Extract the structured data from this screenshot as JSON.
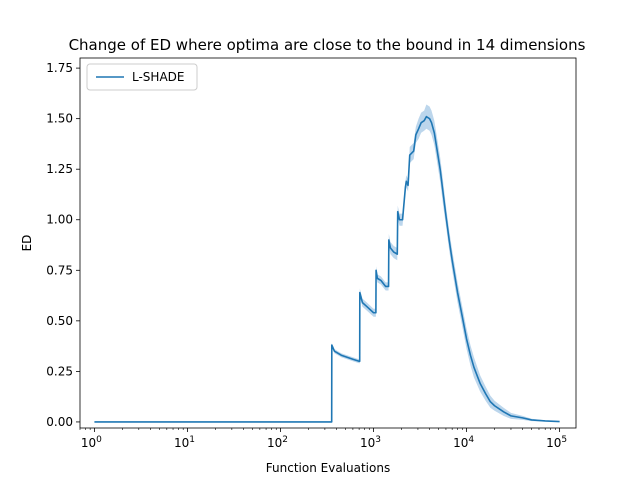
{
  "chart_data": {
    "type": "line",
    "title": "Change of ED where optima are close to the bound in 14 dimensions",
    "xlabel": "Function Evaluations",
    "ylabel": "ED",
    "xscale": "log",
    "xlim": [
      0.7,
      150000
    ],
    "ylim": [
      -0.03,
      1.8
    ],
    "x_ticks": [
      1,
      10,
      100,
      1000,
      10000,
      100000
    ],
    "x_tick_labels": [
      {
        "base": "10",
        "exp": "0"
      },
      {
        "base": "10",
        "exp": "1"
      },
      {
        "base": "10",
        "exp": "2"
      },
      {
        "base": "10",
        "exp": "3"
      },
      {
        "base": "10",
        "exp": "4"
      },
      {
        "base": "10",
        "exp": "5"
      }
    ],
    "y_ticks": [
      0.0,
      0.25,
      0.5,
      0.75,
      1.0,
      1.25,
      1.5,
      1.75
    ],
    "y_tick_labels": [
      "0.00",
      "0.25",
      "0.50",
      "0.75",
      "1.00",
      "1.25",
      "1.50",
      "1.75"
    ],
    "grid": false,
    "legend_position": "upper-left",
    "series": [
      {
        "name": "L-SHADE",
        "color": "#1f77b4",
        "band_color": "#a6c8e5",
        "x": [
          1,
          10,
          100,
          355,
          356,
          380,
          450,
          600,
          700,
          710,
          712,
          760,
          850,
          1000,
          1060,
          1065,
          1100,
          1200,
          1350,
          1450,
          1460,
          1520,
          1650,
          1800,
          1820,
          1900,
          2050,
          2200,
          2250,
          2350,
          2450,
          2700,
          2850,
          3050,
          3250,
          3500,
          3700,
          4000,
          4200,
          4500,
          4800,
          5200,
          5600,
          6000,
          6500,
          7000,
          8000,
          9000,
          10000,
          11000,
          12000,
          14000,
          16000,
          18000,
          20000,
          25000,
          30000,
          40000,
          50000,
          70000,
          100000
        ],
        "y": [
          0.0,
          0.0,
          0.0,
          0.0,
          0.38,
          0.35,
          0.33,
          0.31,
          0.3,
          0.3,
          0.64,
          0.59,
          0.57,
          0.54,
          0.54,
          0.75,
          0.71,
          0.7,
          0.67,
          0.67,
          0.9,
          0.86,
          0.84,
          0.83,
          1.04,
          1.0,
          1.0,
          1.16,
          1.19,
          1.17,
          1.32,
          1.34,
          1.42,
          1.45,
          1.48,
          1.49,
          1.51,
          1.5,
          1.48,
          1.43,
          1.35,
          1.25,
          1.13,
          1.02,
          0.9,
          0.8,
          0.64,
          0.52,
          0.41,
          0.33,
          0.27,
          0.19,
          0.14,
          0.1,
          0.08,
          0.05,
          0.03,
          0.02,
          0.01,
          0.005,
          0.002
        ],
        "band_half_width": [
          0.0,
          0.0,
          0.0,
          0.0,
          0.01,
          0.01,
          0.01,
          0.01,
          0.01,
          0.01,
          0.02,
          0.02,
          0.02,
          0.02,
          0.02,
          0.02,
          0.02,
          0.02,
          0.02,
          0.02,
          0.03,
          0.03,
          0.03,
          0.03,
          0.03,
          0.03,
          0.03,
          0.03,
          0.03,
          0.03,
          0.04,
          0.04,
          0.04,
          0.05,
          0.05,
          0.05,
          0.06,
          0.06,
          0.06,
          0.06,
          0.06,
          0.06,
          0.06,
          0.05,
          0.05,
          0.05,
          0.05,
          0.05,
          0.05,
          0.05,
          0.05,
          0.04,
          0.035,
          0.03,
          0.025,
          0.02,
          0.015,
          0.01,
          0.006,
          0.003,
          0.001
        ]
      }
    ]
  }
}
